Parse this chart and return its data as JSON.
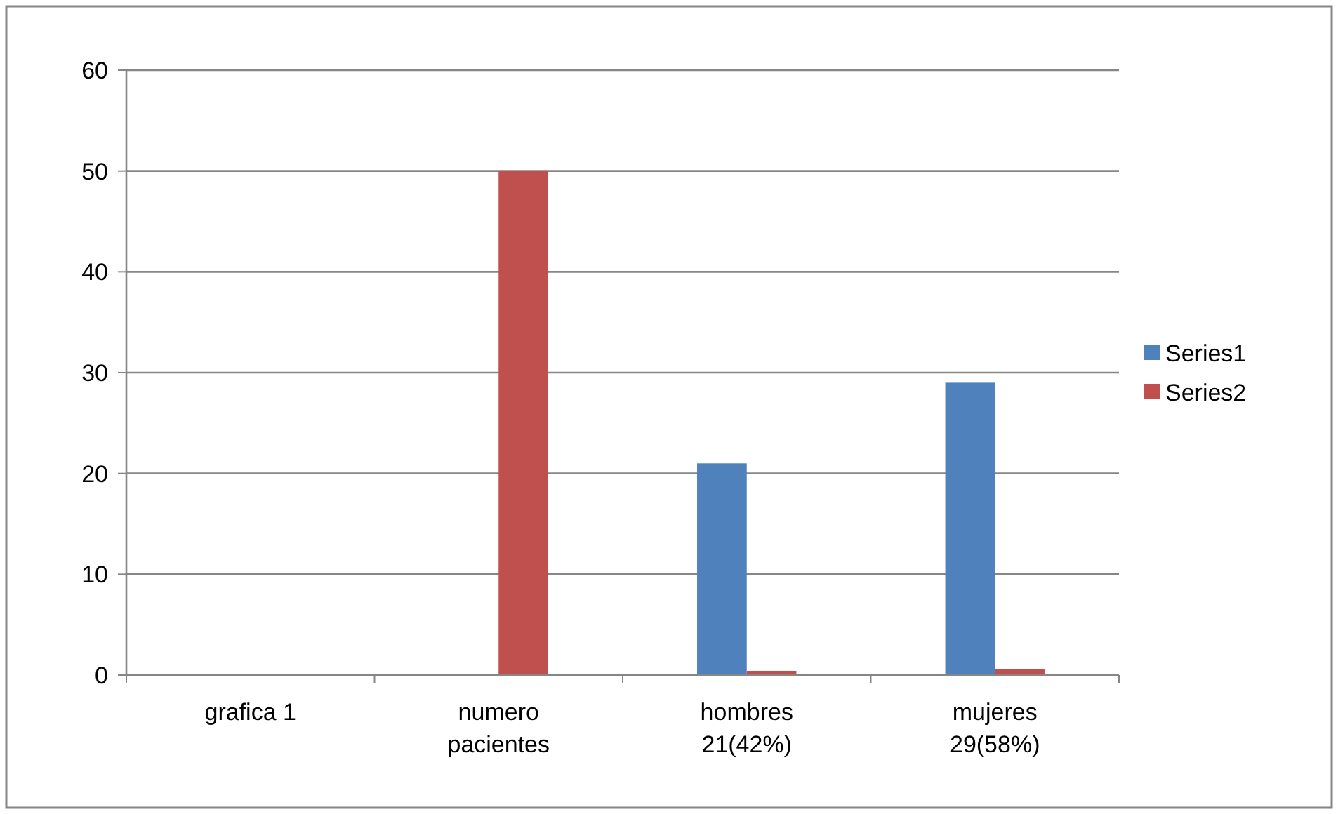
{
  "chart_data": {
    "type": "bar",
    "categories": [
      "grafica 1",
      "numero pacientes",
      "hombres 21(42%)",
      "mujeres 29(58%)"
    ],
    "series": [
      {
        "name": "Series1",
        "color": "#4f81bd",
        "values": [
          null,
          null,
          21,
          29
        ]
      },
      {
        "name": "Series2",
        "color": "#c0504d",
        "values": [
          null,
          50,
          0.42,
          0.58
        ]
      }
    ],
    "ylim": [
      0,
      60
    ],
    "yticks": [
      0,
      10,
      20,
      30,
      40,
      50,
      60
    ],
    "grid": "y",
    "legend": "right"
  }
}
